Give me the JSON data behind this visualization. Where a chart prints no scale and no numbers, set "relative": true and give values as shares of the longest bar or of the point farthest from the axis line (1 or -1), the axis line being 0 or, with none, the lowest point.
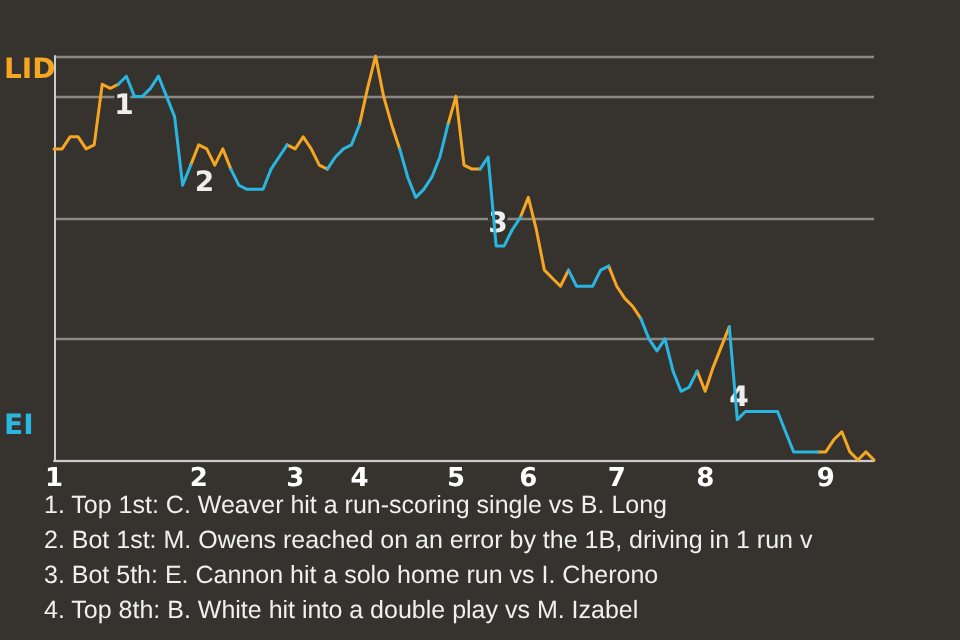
{
  "chart_data": {
    "type": "line",
    "categories": [
      "1",
      null,
      null,
      null,
      null,
      null,
      null,
      null,
      null,
      null,
      null,
      null,
      null,
      null,
      null,
      null,
      null,
      null,
      "2",
      null,
      null,
      null,
      null,
      null,
      null,
      null,
      null,
      null,
      null,
      null,
      "3",
      null,
      null,
      null,
      null,
      null,
      null,
      null,
      "4",
      null,
      null,
      null,
      null,
      null,
      null,
      null,
      null,
      null,
      null,
      null,
      "5",
      null,
      null,
      null,
      null,
      null,
      null,
      null,
      null,
      "6",
      null,
      null,
      null,
      null,
      null,
      null,
      null,
      null,
      null,
      null,
      "7",
      null,
      null,
      null,
      null,
      null,
      null,
      null,
      null,
      null,
      null,
      "8",
      null,
      null,
      null,
      null,
      null,
      null,
      null,
      null,
      null,
      null,
      null,
      null,
      null,
      null,
      "9",
      null,
      null,
      null,
      null,
      null,
      null
    ],
    "relative": true,
    "series": [
      {
        "name": "LID",
        "color": "#f5a623",
        "values": [
          0.77,
          0.77,
          0.8,
          0.8,
          0.77,
          0.78,
          0.93,
          0.92,
          0.93,
          null,
          null,
          null,
          null,
          null,
          null,
          null,
          null,
          0.73,
          0.78,
          0.77,
          0.73,
          0.77,
          0.72,
          null,
          null,
          null,
          null,
          null,
          null,
          0.78,
          0.77,
          0.8,
          0.77,
          0.73,
          0.72,
          null,
          null,
          null,
          0.83,
          0.92,
          1.0,
          0.9,
          0.83,
          0.77,
          null,
          null,
          null,
          null,
          null,
          0.83,
          0.9,
          0.73,
          0.72,
          0.72,
          null,
          null,
          null,
          null,
          0.6,
          0.65,
          0.57,
          0.47,
          0.45,
          0.43,
          0.47,
          null,
          null,
          null,
          null,
          0.48,
          0.43,
          0.4,
          0.38,
          0.35,
          null,
          null,
          null,
          null,
          null,
          null,
          0.22,
          0.17,
          0.23,
          0.28,
          0.33,
          null,
          null,
          null,
          null,
          null,
          null,
          null,
          null,
          null,
          null,
          0.02,
          0.02,
          0.05,
          0.07,
          0.02,
          0.0,
          0.02,
          0.0
        ]
      },
      {
        "name": "EI",
        "color": "#29b6e0",
        "values": [
          null,
          null,
          null,
          null,
          null,
          null,
          null,
          null,
          0.93,
          0.95,
          0.9,
          0.9,
          0.92,
          0.95,
          0.9,
          0.85,
          0.68,
          0.73,
          null,
          null,
          null,
          null,
          0.72,
          0.68,
          0.67,
          0.67,
          0.67,
          0.72,
          0.75,
          0.78,
          null,
          null,
          null,
          null,
          0.72,
          0.75,
          0.77,
          0.78,
          0.83,
          null,
          null,
          null,
          null,
          0.77,
          0.7,
          0.65,
          0.67,
          0.7,
          0.75,
          0.83,
          null,
          null,
          null,
          0.72,
          0.75,
          0.53,
          0.53,
          0.57,
          0.6,
          null,
          null,
          null,
          null,
          null,
          0.47,
          0.43,
          0.43,
          0.43,
          0.47,
          0.48,
          null,
          null,
          null,
          0.35,
          0.3,
          0.27,
          0.3,
          0.22,
          0.17,
          0.18,
          0.22,
          null,
          null,
          null,
          0.33,
          0.1,
          0.12,
          0.12,
          0.12,
          0.12,
          0.12,
          0.07,
          0.02,
          0.02,
          0.02,
          0.02,
          null,
          null,
          null,
          null,
          null,
          null,
          null
        ]
      }
    ],
    "legend": "left",
    "grid": "y",
    "annotations": [
      {
        "text": "1",
        "y": 0.92
      },
      {
        "text": "2",
        "y": 0.73
      },
      {
        "text": "3",
        "y": 0.53
      },
      {
        "text": "4",
        "y": 0.1
      },
      "1. Top 1st: C. Weaver hit a run-scoring single vs B. Long",
      "2. Bot 1st: M. Owens reached on an error by the 1B, driving in 1 run v",
      "3. Bot 5th: E. Cannon hit a solo home run vs I. Cherono",
      "4. Top 8th: B. White hit into a double play vs M. Izabel"
    ]
  }
}
